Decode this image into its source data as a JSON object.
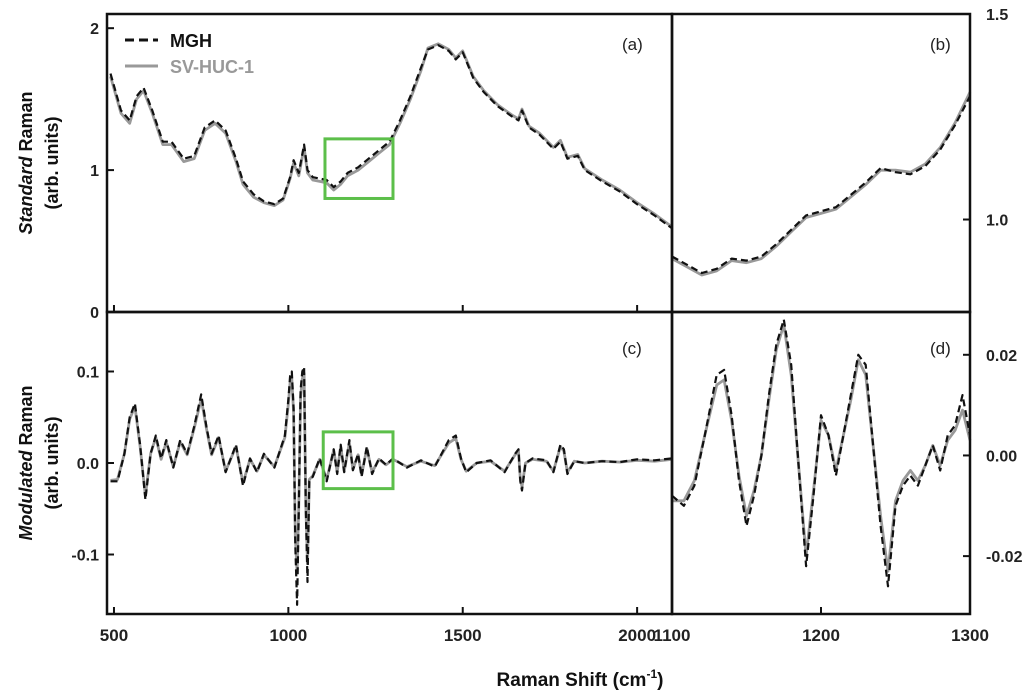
{
  "figure": {
    "xlabel_main": "Raman Shift (cm",
    "xlabel_sup": "-1",
    "xlabel_end": ")",
    "ylabel_top_italic": "Standard",
    "ylabel_top_rest": " Raman",
    "ylabel_top_units": "(arb. units)",
    "ylabel_bottom_italic": "Modulated",
    "ylabel_bottom_rest": " Raman",
    "ylabel_bottom_units": "(arb. units)",
    "legend": [
      {
        "label": "MGH",
        "color": "#111111",
        "style": "dashed"
      },
      {
        "label": "SV-HUC-1",
        "color": "#999999",
        "style": "solid"
      }
    ],
    "highlight_color": "#5cbf4a"
  },
  "chart_data": [
    {
      "panel": "(a)",
      "type": "line",
      "xlim": [
        480,
        2100
      ],
      "ylim": [
        0,
        2.1
      ],
      "xticks": [
        500,
        1000,
        1500,
        2000
      ],
      "yticks": [
        0,
        1,
        2
      ],
      "ytick_labels": [
        "0",
        "1",
        "2"
      ],
      "highlight_box": {
        "x": [
          1105,
          1300
        ],
        "y": [
          0.8,
          1.22
        ]
      },
      "series": [
        {
          "name": "MGH",
          "x": [
            490,
            520,
            545,
            565,
            585,
            610,
            640,
            665,
            700,
            730,
            760,
            790,
            820,
            850,
            870,
            900,
            930,
            960,
            985,
            1005,
            1015,
            1030,
            1045,
            1055,
            1070,
            1090,
            1110,
            1130,
            1150,
            1170,
            1200,
            1230,
            1260,
            1290,
            1320,
            1350,
            1380,
            1400,
            1430,
            1460,
            1480,
            1500,
            1530,
            1560,
            1600,
            1640,
            1660,
            1670,
            1690,
            1720,
            1760,
            1780,
            1800,
            1830,
            1850,
            1900,
            1950,
            2000,
            2050,
            2100
          ],
          "y": [
            1.68,
            1.42,
            1.35,
            1.52,
            1.58,
            1.42,
            1.2,
            1.2,
            1.08,
            1.1,
            1.3,
            1.35,
            1.28,
            1.08,
            0.92,
            0.83,
            0.78,
            0.76,
            0.8,
            0.95,
            1.07,
            0.98,
            1.18,
            1.0,
            0.95,
            0.94,
            0.93,
            0.88,
            0.92,
            0.98,
            1.02,
            1.08,
            1.14,
            1.2,
            1.35,
            1.52,
            1.72,
            1.85,
            1.88,
            1.84,
            1.78,
            1.83,
            1.65,
            1.55,
            1.45,
            1.38,
            1.35,
            1.42,
            1.3,
            1.25,
            1.15,
            1.2,
            1.08,
            1.1,
            1.0,
            0.92,
            0.85,
            0.76,
            0.68,
            0.59
          ]
        },
        {
          "name": "SV-HUC-1",
          "x": [
            490,
            520,
            545,
            565,
            585,
            610,
            640,
            665,
            700,
            730,
            760,
            790,
            820,
            850,
            870,
            900,
            930,
            960,
            985,
            1005,
            1015,
            1030,
            1045,
            1055,
            1070,
            1090,
            1110,
            1130,
            1150,
            1170,
            1200,
            1230,
            1260,
            1290,
            1320,
            1350,
            1380,
            1400,
            1430,
            1460,
            1480,
            1500,
            1530,
            1560,
            1600,
            1640,
            1660,
            1670,
            1690,
            1720,
            1760,
            1780,
            1800,
            1830,
            1850,
            1900,
            1950,
            2000,
            2050,
            2100
          ],
          "y": [
            1.66,
            1.4,
            1.33,
            1.5,
            1.56,
            1.4,
            1.18,
            1.18,
            1.06,
            1.08,
            1.28,
            1.33,
            1.26,
            1.06,
            0.9,
            0.81,
            0.77,
            0.75,
            0.79,
            0.94,
            1.05,
            0.96,
            1.16,
            0.98,
            0.93,
            0.92,
            0.91,
            0.86,
            0.9,
            0.96,
            1.0,
            1.06,
            1.12,
            1.18,
            1.33,
            1.5,
            1.7,
            1.86,
            1.89,
            1.85,
            1.79,
            1.84,
            1.66,
            1.56,
            1.46,
            1.39,
            1.36,
            1.43,
            1.31,
            1.26,
            1.16,
            1.21,
            1.09,
            1.11,
            1.01,
            0.93,
            0.86,
            0.77,
            0.69,
            0.6
          ]
        }
      ]
    },
    {
      "panel": "(b)",
      "type": "line",
      "xlim": [
        1100,
        1300
      ],
      "ylim": [
        0.775,
        1.5
      ],
      "yaxis": "right",
      "yticks": [
        1.0,
        1.5
      ],
      "ytick_labels": [
        "1.0",
        "1.5"
      ],
      "series": [
        {
          "name": "MGH",
          "x": [
            1100,
            1110,
            1120,
            1130,
            1140,
            1150,
            1160,
            1170,
            1180,
            1190,
            1200,
            1210,
            1220,
            1230,
            1240,
            1250,
            1260,
            1270,
            1280,
            1290,
            1300
          ],
          "y": [
            0.91,
            0.89,
            0.87,
            0.88,
            0.905,
            0.9,
            0.91,
            0.94,
            0.975,
            1.01,
            1.02,
            1.03,
            1.06,
            1.09,
            1.125,
            1.115,
            1.11,
            1.13,
            1.17,
            1.23,
            1.3
          ]
        },
        {
          "name": "SV-HUC-1",
          "x": [
            1100,
            1110,
            1120,
            1130,
            1140,
            1150,
            1160,
            1170,
            1180,
            1190,
            1200,
            1210,
            1220,
            1230,
            1240,
            1250,
            1260,
            1270,
            1280,
            1290,
            1300
          ],
          "y": [
            0.905,
            0.885,
            0.865,
            0.875,
            0.9,
            0.895,
            0.905,
            0.935,
            0.97,
            1.005,
            1.015,
            1.025,
            1.055,
            1.085,
            1.12,
            1.12,
            1.115,
            1.135,
            1.175,
            1.235,
            1.31
          ]
        }
      ]
    },
    {
      "panel": "(c)",
      "type": "line",
      "xlim": [
        480,
        2100
      ],
      "ylim": [
        -0.165,
        0.165
      ],
      "xticks": [
        500,
        1000,
        1500,
        2000
      ],
      "yticks": [
        -0.1,
        0.0,
        0.1
      ],
      "ytick_labels": [
        "-0.1",
        "0.0",
        "0.1"
      ],
      "highlight_box": {
        "x": [
          1100,
          1300
        ],
        "y": [
          -0.028,
          0.034
        ]
      },
      "series": [
        {
          "name": "MGH",
          "x": [
            490,
            510,
            530,
            545,
            560,
            575,
            590,
            605,
            620,
            635,
            650,
            670,
            690,
            710,
            730,
            750,
            765,
            780,
            800,
            820,
            850,
            870,
            890,
            910,
            930,
            960,
            990,
            1000,
            1005,
            1010,
            1015,
            1020,
            1025,
            1030,
            1035,
            1040,
            1045,
            1050,
            1055,
            1060,
            1070,
            1090,
            1110,
            1130,
            1140,
            1150,
            1160,
            1175,
            1185,
            1200,
            1210,
            1225,
            1240,
            1260,
            1280,
            1300,
            1340,
            1380,
            1420,
            1460,
            1480,
            1495,
            1510,
            1540,
            1580,
            1620,
            1650,
            1660,
            1665,
            1670,
            1680,
            1700,
            1740,
            1760,
            1780,
            1790,
            1800,
            1820,
            1850,
            1900,
            1950,
            2000,
            2050,
            2100
          ],
          "y": [
            -0.02,
            -0.02,
            0.01,
            0.05,
            0.065,
            0.02,
            -0.04,
            0.01,
            0.03,
            0.005,
            0.025,
            -0.005,
            0.025,
            0.01,
            0.04,
            0.075,
            0.04,
            0.01,
            0.03,
            -0.01,
            0.02,
            -0.025,
            0.005,
            -0.01,
            0.01,
            -0.005,
            0.03,
            0.07,
            0.095,
            0.1,
            0.06,
            -0.09,
            -0.155,
            -0.05,
            0.08,
            0.1,
            0.105,
            -0.05,
            -0.13,
            -0.02,
            -0.015,
            0.005,
            -0.02,
            0.015,
            -0.012,
            0.02,
            -0.01,
            0.025,
            -0.008,
            0.01,
            -0.015,
            0.018,
            -0.012,
            0.005,
            -0.002,
            0.005,
            -0.005,
            0.003,
            -0.004,
            0.025,
            0.03,
            0.005,
            -0.01,
            0.0,
            0.003,
            -0.01,
            0.01,
            0.015,
            -0.02,
            -0.03,
            0.0,
            0.005,
            0.003,
            -0.01,
            0.02,
            0.015,
            -0.012,
            0.002,
            0.0,
            0.002,
            0.001,
            0.004,
            0.003,
            0.005
          ]
        },
        {
          "name": "SV-HUC-1",
          "x": [
            490,
            510,
            530,
            545,
            560,
            575,
            590,
            605,
            620,
            635,
            650,
            670,
            690,
            710,
            730,
            750,
            765,
            780,
            800,
            820,
            850,
            870,
            890,
            910,
            930,
            960,
            990,
            1000,
            1005,
            1010,
            1015,
            1020,
            1025,
            1030,
            1035,
            1040,
            1045,
            1050,
            1055,
            1060,
            1070,
            1090,
            1110,
            1130,
            1140,
            1150,
            1160,
            1175,
            1185,
            1200,
            1210,
            1225,
            1240,
            1260,
            1280,
            1300,
            1340,
            1380,
            1420,
            1460,
            1480,
            1495,
            1510,
            1540,
            1580,
            1620,
            1650,
            1660,
            1665,
            1670,
            1680,
            1700,
            1740,
            1760,
            1780,
            1790,
            1800,
            1820,
            1850,
            1900,
            1950,
            2000,
            2050,
            2100
          ],
          "y": [
            -0.019,
            -0.018,
            0.01,
            0.048,
            0.062,
            0.018,
            -0.036,
            0.01,
            0.028,
            0.004,
            0.023,
            -0.004,
            0.023,
            0.009,
            0.038,
            0.07,
            0.038,
            0.009,
            0.028,
            -0.009,
            0.018,
            -0.022,
            0.004,
            -0.009,
            0.009,
            -0.004,
            0.028,
            0.065,
            0.088,
            0.092,
            0.055,
            -0.08,
            -0.12,
            -0.045,
            0.072,
            0.092,
            0.098,
            -0.045,
            -0.11,
            -0.018,
            -0.014,
            0.004,
            -0.018,
            0.014,
            -0.01,
            0.018,
            -0.009,
            0.022,
            -0.007,
            0.009,
            -0.013,
            0.016,
            -0.01,
            0.004,
            -0.002,
            0.004,
            -0.004,
            0.002,
            -0.003,
            0.022,
            0.027,
            0.004,
            -0.009,
            0.0,
            0.002,
            -0.009,
            0.009,
            0.013,
            -0.017,
            -0.026,
            0.0,
            0.004,
            0.002,
            -0.009,
            0.018,
            0.013,
            -0.01,
            0.002,
            0.0,
            0.002,
            0.001,
            0.003,
            0.002,
            0.004
          ]
        }
      ]
    },
    {
      "panel": "(d)",
      "type": "line",
      "xlim": [
        1100,
        1300
      ],
      "ylim": [
        -0.0315,
        0.0285
      ],
      "yaxis": "right",
      "xticks": [
        1100,
        1200,
        1300
      ],
      "yticks": [
        -0.02,
        0.0,
        0.02
      ],
      "ytick_labels": [
        "-0.02",
        "0.00",
        "0.02"
      ],
      "series": [
        {
          "name": "MGH",
          "x": [
            1100,
            1108,
            1115,
            1122,
            1130,
            1135,
            1140,
            1145,
            1150,
            1155,
            1160,
            1165,
            1170,
            1175,
            1180,
            1185,
            1190,
            1195,
            1200,
            1205,
            1210,
            1215,
            1220,
            1225,
            1230,
            1235,
            1240,
            1245,
            1250,
            1255,
            1260,
            1265,
            1270,
            1275,
            1280,
            1285,
            1290,
            1295,
            1300
          ],
          "y": [
            -0.008,
            -0.01,
            -0.006,
            0.004,
            0.016,
            0.017,
            0.008,
            -0.005,
            -0.014,
            -0.008,
            0.0,
            0.012,
            0.022,
            0.027,
            0.018,
            -0.002,
            -0.022,
            -0.008,
            0.008,
            0.004,
            -0.004,
            0.004,
            0.012,
            0.02,
            0.018,
            0.002,
            -0.014,
            -0.026,
            -0.01,
            -0.006,
            -0.004,
            -0.006,
            -0.002,
            0.002,
            -0.003,
            0.004,
            0.006,
            0.012,
            0.004
          ]
        },
        {
          "name": "SV-HUC-1",
          "x": [
            1100,
            1108,
            1115,
            1122,
            1130,
            1135,
            1140,
            1145,
            1150,
            1155,
            1160,
            1165,
            1170,
            1175,
            1180,
            1185,
            1190,
            1195,
            1200,
            1205,
            1210,
            1215,
            1220,
            1225,
            1230,
            1235,
            1240,
            1245,
            1250,
            1255,
            1260,
            1265,
            1270,
            1275,
            1280,
            1285,
            1290,
            1295,
            1300
          ],
          "y": [
            -0.009,
            -0.009,
            -0.005,
            0.004,
            0.014,
            0.015,
            0.007,
            -0.004,
            -0.012,
            -0.007,
            0.0,
            0.011,
            0.021,
            0.026,
            0.016,
            -0.002,
            -0.02,
            -0.007,
            0.007,
            0.004,
            -0.003,
            0.004,
            0.011,
            0.019,
            0.016,
            0.002,
            -0.012,
            -0.023,
            -0.009,
            -0.005,
            -0.003,
            -0.005,
            -0.002,
            0.002,
            -0.002,
            0.003,
            0.005,
            0.009,
            0.003
          ]
        }
      ]
    }
  ]
}
